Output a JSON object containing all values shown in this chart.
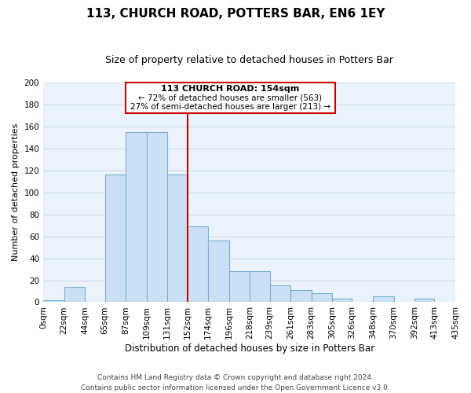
{
  "title": "113, CHURCH ROAD, POTTERS BAR, EN6 1EY",
  "subtitle": "Size of property relative to detached houses in Potters Bar",
  "xlabel": "Distribution of detached houses by size in Potters Bar",
  "ylabel": "Number of detached properties",
  "bar_edges": [
    0,
    22,
    44,
    65,
    87,
    109,
    131,
    152,
    174,
    196,
    218,
    239,
    261,
    283,
    305,
    326,
    348,
    370,
    392,
    413,
    435
  ],
  "bar_heights": [
    2,
    14,
    0,
    116,
    155,
    155,
    116,
    69,
    56,
    28,
    28,
    15,
    11,
    8,
    3,
    0,
    5,
    0,
    3,
    0
  ],
  "tick_labels": [
    "0sqm",
    "22sqm",
    "44sqm",
    "65sqm",
    "87sqm",
    "109sqm",
    "131sqm",
    "152sqm",
    "174sqm",
    "196sqm",
    "218sqm",
    "239sqm",
    "261sqm",
    "283sqm",
    "305sqm",
    "326sqm",
    "348sqm",
    "370sqm",
    "392sqm",
    "413sqm",
    "435sqm"
  ],
  "bar_color": "#cce0f5",
  "bar_edge_color": "#7aafd4",
  "vline_x": 152,
  "vline_color": "#cc0000",
  "ylim": [
    0,
    200
  ],
  "yticks": [
    0,
    20,
    40,
    60,
    80,
    100,
    120,
    140,
    160,
    180,
    200
  ],
  "annotation_title": "113 CHURCH ROAD: 154sqm",
  "annotation_line1": "← 72% of detached houses are smaller (563)",
  "annotation_line2": "27% of semi-detached houses are larger (213) →",
  "annotation_box_color": "#ffffff",
  "annotation_box_edge": "#cc0000",
  "footer_line1": "Contains HM Land Registry data © Crown copyright and database right 2024.",
  "footer_line2": "Contains public sector information licensed under the Open Government Licence v3.0.",
  "background_color": "#ffffff",
  "plot_bg_color": "#eaf3fb",
  "grid_color": "#c8d8e8",
  "title_fontsize": 11,
  "subtitle_fontsize": 9,
  "xlabel_fontsize": 8.5,
  "ylabel_fontsize": 8,
  "tick_fontsize": 7.5,
  "footer_fontsize": 6.5
}
